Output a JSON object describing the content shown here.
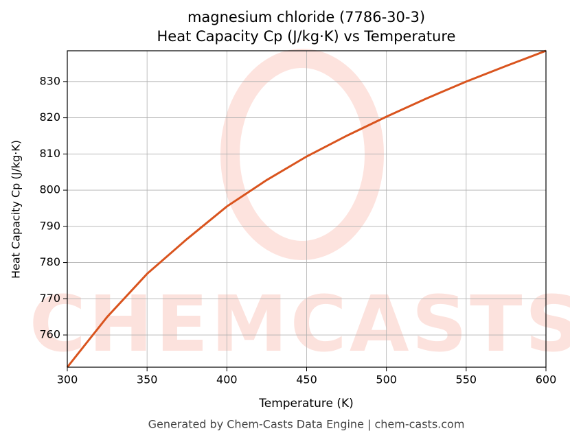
{
  "chart_data": {
    "type": "line",
    "title": "magnesium chloride (7786-30-3)",
    "subtitle": "Heat Capacity Cp (J/kg·K) vs Temperature",
    "x_label": "Temperature (K)",
    "y_label": "Heat Capacity Cp (J/kg·K)",
    "footer": "Generated by Chem-Casts Data Engine | chem-casts.com",
    "watermark": "CHEMCASTS",
    "x": [
      300,
      325,
      350,
      375,
      400,
      425,
      450,
      475,
      500,
      525,
      550,
      575,
      600
    ],
    "series": [
      {
        "name": "Heat Capacity Cp",
        "color": "#d9541e",
        "values": [
          751.1,
          765,
          776.9,
          786.5,
          795.5,
          802.8,
          809.3,
          815,
          820.3,
          825.3,
          830,
          834.3,
          838.5
        ]
      }
    ],
    "xlim": [
      300,
      600
    ],
    "xticks": [
      300,
      350,
      400,
      450,
      500,
      550,
      600
    ],
    "ylim": [
      751.1,
      838.5
    ],
    "yticks": [
      760,
      770,
      780,
      790,
      800,
      810,
      820,
      830
    ],
    "grid": true
  }
}
